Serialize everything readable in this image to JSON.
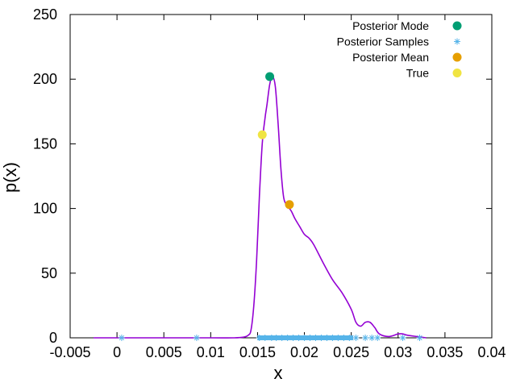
{
  "chart_data": {
    "type": "line",
    "title": "",
    "xlabel": "x",
    "ylabel": "p(x)",
    "xlim": [
      -0.005,
      0.04
    ],
    "ylim": [
      0,
      250
    ],
    "xticks": [
      -0.005,
      0,
      0.005,
      0.01,
      0.015,
      0.02,
      0.025,
      0.03,
      0.035,
      0.04
    ],
    "xtick_labels": [
      "-0.005",
      "0",
      "0.005",
      "0.01",
      "0.015",
      "0.02",
      "0.025",
      "0.03",
      "0.035",
      "0.04"
    ],
    "yticks": [
      0,
      50,
      100,
      150,
      200,
      250
    ],
    "ytick_labels": [
      "0",
      "50",
      "100",
      "150",
      "200",
      "250"
    ],
    "grid": false,
    "legend_position": "top-right",
    "colors": {
      "density": "#9400d3",
      "mode": "#009e73",
      "samples": "#56b4e9",
      "mean": "#e69f00",
      "true": "#f0e442",
      "axis": "#000000"
    },
    "series": [
      {
        "name": "",
        "role": "density",
        "x": [
          -0.0025,
          0.0,
          0.005,
          0.01,
          0.0125,
          0.0135,
          0.014,
          0.0143,
          0.0146,
          0.0149,
          0.0152,
          0.0155,
          0.0158,
          0.016,
          0.0163,
          0.0166,
          0.0169,
          0.0172,
          0.0175,
          0.0178,
          0.0182,
          0.0186,
          0.019,
          0.0195,
          0.02,
          0.0205,
          0.021,
          0.022,
          0.023,
          0.024,
          0.025,
          0.0255,
          0.026,
          0.0265,
          0.027,
          0.0275,
          0.028,
          0.029,
          0.03,
          0.0305,
          0.031,
          0.032,
          0.0325,
          0.033
        ],
        "y": [
          0,
          0,
          0,
          0,
          0,
          0.5,
          2,
          6,
          25,
          60,
          110,
          150,
          170,
          180,
          196,
          202,
          194,
          165,
          130,
          108,
          102,
          98,
          92,
          86,
          80,
          77,
          72,
          58,
          45,
          35,
          22,
          12,
          9,
          12,
          12,
          8,
          3,
          1,
          3,
          3,
          2,
          1,
          0.5,
          0
        ]
      },
      {
        "name": "Posterior Mode",
        "role": "mode",
        "x": [
          0.0163
        ],
        "y": [
          202
        ]
      },
      {
        "name": "Posterior Samples",
        "role": "samples",
        "x": [
          0.0005,
          0.0085,
          0.0152,
          0.0158,
          0.0165,
          0.017,
          0.0176,
          0.0182,
          0.0188,
          0.0194,
          0.02,
          0.0206,
          0.0212,
          0.0218,
          0.0224,
          0.023,
          0.0236,
          0.0242,
          0.0248,
          0.0255,
          0.0265,
          0.0272,
          0.0278,
          0.0305,
          0.0323
        ],
        "y": [
          0,
          0,
          0,
          0,
          0,
          0,
          0,
          0,
          0,
          0,
          0,
          0,
          0,
          0,
          0,
          0,
          0,
          0,
          0,
          0,
          0,
          0,
          0,
          0,
          0
        ]
      },
      {
        "name": "Posterior Mean",
        "role": "mean",
        "x": [
          0.0184
        ],
        "y": [
          103
        ]
      },
      {
        "name": "True",
        "role": "true",
        "x": [
          0.0155
        ],
        "y": [
          157
        ]
      }
    ]
  }
}
